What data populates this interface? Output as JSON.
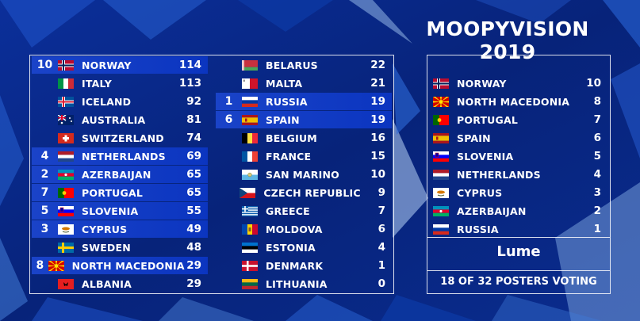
{
  "title": "MOOPYVISION 2019",
  "colors": {
    "highlight": "#1a43c8",
    "background": "#0a2a8c"
  },
  "scoreboard": {
    "left": [
      {
        "rank": "10",
        "country": "NORWAY",
        "points": "114",
        "flag": "norway-flag"
      },
      {
        "rank": "",
        "country": "ITALY",
        "points": "113",
        "flag": "italy-flag"
      },
      {
        "rank": "",
        "country": "ICELAND",
        "points": "92",
        "flag": "iceland-flag"
      },
      {
        "rank": "",
        "country": "AUSTRALIA",
        "points": "81",
        "flag": "australia-flag"
      },
      {
        "rank": "",
        "country": "SWITZERLAND",
        "points": "74",
        "flag": "switzerland-flag"
      },
      {
        "rank": "4",
        "country": "NETHERLANDS",
        "points": "69",
        "flag": "netherlands-flag"
      },
      {
        "rank": "2",
        "country": "AZERBAIJAN",
        "points": "65",
        "flag": "azerbaijan-flag"
      },
      {
        "rank": "7",
        "country": "PORTUGAL",
        "points": "65",
        "flag": "portugal-flag"
      },
      {
        "rank": "5",
        "country": "SLOVENIA",
        "points": "55",
        "flag": "slovenia-flag"
      },
      {
        "rank": "3",
        "country": "CYPRUS",
        "points": "49",
        "flag": "cyprus-flag"
      },
      {
        "rank": "",
        "country": "SWEDEN",
        "points": "48",
        "flag": "sweden-flag"
      },
      {
        "rank": "8",
        "country": "NORTH MACEDONIA",
        "points": "29",
        "flag": "north-macedonia-flag"
      },
      {
        "rank": "",
        "country": "ALBANIA",
        "points": "29",
        "flag": "albania-flag"
      }
    ],
    "right": [
      {
        "rank": "",
        "country": "BELARUS",
        "points": "22",
        "flag": "belarus-flag"
      },
      {
        "rank": "",
        "country": "MALTA",
        "points": "21",
        "flag": "malta-flag"
      },
      {
        "rank": "1",
        "country": "RUSSIA",
        "points": "19",
        "flag": "russia-flag"
      },
      {
        "rank": "6",
        "country": "SPAIN",
        "points": "19",
        "flag": "spain-flag"
      },
      {
        "rank": "",
        "country": "BELGIUM",
        "points": "16",
        "flag": "belgium-flag"
      },
      {
        "rank": "",
        "country": "FRANCE",
        "points": "15",
        "flag": "france-flag"
      },
      {
        "rank": "",
        "country": "SAN MARINO",
        "points": "10",
        "flag": "san-marino-flag"
      },
      {
        "rank": "",
        "country": "CZECH REPUBLIC",
        "points": "9",
        "flag": "czech-flag"
      },
      {
        "rank": "",
        "country": "GREECE",
        "points": "7",
        "flag": "greece-flag"
      },
      {
        "rank": "",
        "country": "MOLDOVA",
        "points": "6",
        "flag": "moldova-flag"
      },
      {
        "rank": "",
        "country": "ESTONIA",
        "points": "4",
        "flag": "estonia-flag"
      },
      {
        "rank": "",
        "country": "DENMARK",
        "points": "1",
        "flag": "denmark-flag"
      },
      {
        "rank": "",
        "country": "LITHUANIA",
        "points": "0",
        "flag": "lithuania-flag"
      }
    ]
  },
  "votes": {
    "items": [
      {
        "country": "NORWAY",
        "points": "10",
        "flag": "norway-flag"
      },
      {
        "country": "NORTH MACEDONIA",
        "points": "8",
        "flag": "north-macedonia-flag"
      },
      {
        "country": "PORTUGAL",
        "points": "7",
        "flag": "portugal-flag"
      },
      {
        "country": "SPAIN",
        "points": "6",
        "flag": "spain-flag"
      },
      {
        "country": "SLOVENIA",
        "points": "5",
        "flag": "slovenia-flag"
      },
      {
        "country": "NETHERLANDS",
        "points": "4",
        "flag": "netherlands-flag"
      },
      {
        "country": "CYPRUS",
        "points": "3",
        "flag": "cyprus-flag"
      },
      {
        "country": "AZERBAIJAN",
        "points": "2",
        "flag": "azerbaijan-flag"
      },
      {
        "country": "RUSSIA",
        "points": "1",
        "flag": "russia-flag"
      }
    ],
    "voter": "Lume",
    "footer": "18 OF 32 POSTERS VOTING"
  }
}
